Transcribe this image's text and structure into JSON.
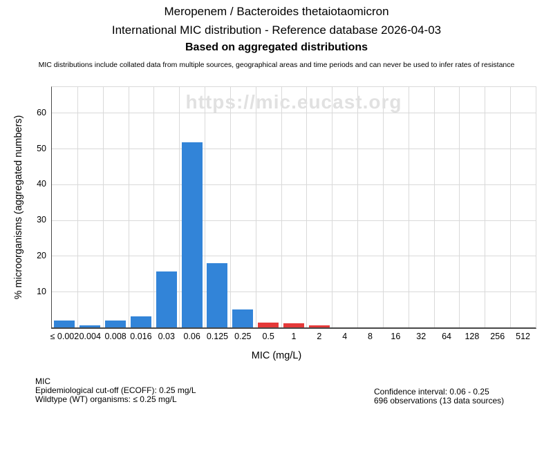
{
  "header": {
    "title": "Meropenem / Bacteroides thetaiotaomicron",
    "subtitle": "International MIC distribution - Reference database 2026-04-03",
    "subtitle2": "Based on aggregated distributions",
    "disclaimer": "MIC distributions include collated data from multiple sources, geographical areas and time periods and can never be used to infer rates of resistance"
  },
  "watermark": "https://mic.eucast.org",
  "chart_data": {
    "type": "bar",
    "title": "Meropenem / Bacteroides thetaiotaomicron — International MIC distribution",
    "categories": [
      "≤ 0.002",
      "0.004",
      "0.008",
      "0.016",
      "0.03",
      "0.06",
      "0.125",
      "0.25",
      "0.5",
      "1",
      "2",
      "4",
      "8",
      "16",
      "32",
      "64",
      "128",
      "256",
      "512"
    ],
    "values": [
      1.9,
      0.5,
      1.9,
      3.1,
      15.6,
      51.8,
      18.0,
      5.1,
      1.3,
      1.1,
      0.5,
      0,
      0,
      0,
      0,
      0,
      0,
      0,
      0
    ],
    "xlabel": "MIC (mg/L)",
    "ylabel": "% microorganisms (aggregated numbers)",
    "yticks": [
      10,
      20,
      30,
      40,
      50,
      60
    ],
    "ylim": [
      0,
      67.2
    ],
    "grid": true,
    "legend": "none",
    "colors": {
      "wildtype_bar": "#3284d8",
      "above_ecoff_bar": "#e53939",
      "gridline": "#d9d9d9",
      "axis": "#474747",
      "watermark": "#e1e1e1"
    },
    "above_ecoff_start_index": 8
  },
  "footer": {
    "section_label": "MIC",
    "ecoff_line": "Epidemiological cut-off (ECOFF): 0.25 mg/L",
    "wildtype_line": "Wildtype (WT) organisms: ≤ 0.25 mg/L",
    "confidence_line": "Confidence interval: 0.06 - 0.25",
    "observations_line": "696 observations (13 data sources)"
  }
}
